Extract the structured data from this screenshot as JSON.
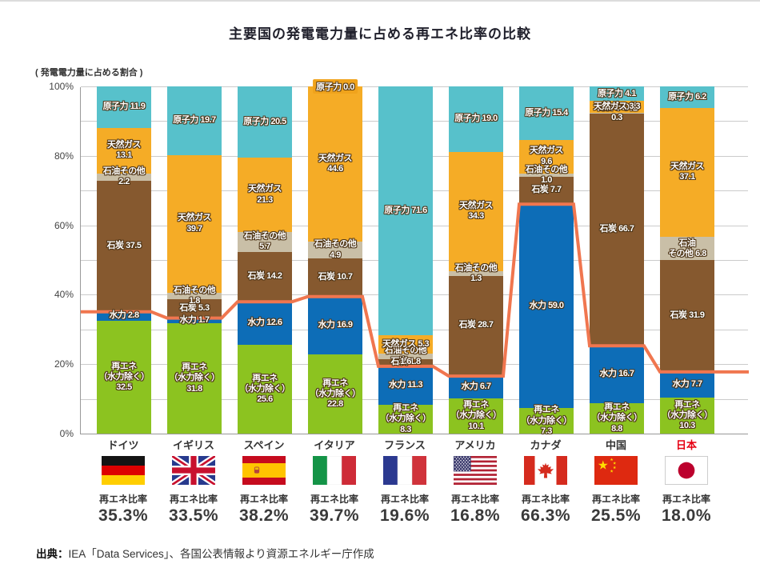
{
  "title": "主要国の発電電力量に占める再エネ比率の比較",
  "axis_note": "( 発電電力量に占める割合 )",
  "ratio_label": "再エネ比率",
  "source": {
    "prefix": "出典：",
    "text": "IEA「Data Services」、各国公表情報より資源エネルギー庁作成"
  },
  "chart_data": {
    "type": "bar",
    "stacked": true,
    "ylim": [
      0,
      100
    ],
    "grid": true,
    "yticks": [
      "0%",
      "20%",
      "40%",
      "60%",
      "80%",
      "100%"
    ],
    "line_series": {
      "name": "再エネ比率",
      "color": "#F0764F"
    },
    "zero_chip_color": "#F0A31C",
    "segments": [
      {
        "key": "renewable",
        "name": "再エネ（水力除く）",
        "color": "#8CC320"
      },
      {
        "key": "hydro",
        "name": "水力",
        "color": "#0D6DB7"
      },
      {
        "key": "coal",
        "name": "石炭",
        "color": "#86592F"
      },
      {
        "key": "oil",
        "name": "石油その他",
        "color": "#C9BFA7"
      },
      {
        "key": "gas",
        "name": "天然ガス",
        "color": "#F5AC26"
      },
      {
        "key": "nuclear",
        "name": "原子力",
        "color": "#57C1CB"
      }
    ],
    "countries": [
      {
        "id": "germany",
        "name": "ドイツ",
        "name_color": "#333333",
        "ratio": 35.3,
        "ratio_text": "35.3%",
        "flag": "germany",
        "values": {
          "renewable": 32.5,
          "hydro": 2.8,
          "coal": 37.5,
          "oil": 2.2,
          "gas": 13.1,
          "nuclear": 11.9
        },
        "labels": {
          "renewable": "再エネ\n（水力除く）\n32.5",
          "hydro": "水力 2.8",
          "coal": "石炭 37.5",
          "oil": "石油その他 2.2",
          "gas": "天然ガス\n13.1",
          "nuclear": "原子力 11.9"
        }
      },
      {
        "id": "uk",
        "name": "イギリス",
        "name_color": "#333333",
        "ratio": 33.5,
        "ratio_text": "33.5%",
        "flag": "uk",
        "values": {
          "renewable": 31.8,
          "hydro": 1.7,
          "coal": 5.3,
          "oil": 1.8,
          "gas": 39.7,
          "nuclear": 19.7
        },
        "labels": {
          "renewable": "再エネ\n（水力除く）\n31.8",
          "hydro": "水力 1.7",
          "coal": "石炭 5.3",
          "oil": "石油その他 1.8",
          "gas": "天然ガス\n39.7",
          "nuclear": "原子力 19.7"
        }
      },
      {
        "id": "spain",
        "name": "スペイン",
        "name_color": "#333333",
        "ratio": 38.2,
        "ratio_text": "38.2%",
        "flag": "spain",
        "values": {
          "renewable": 25.6,
          "hydro": 12.6,
          "coal": 14.2,
          "oil": 5.7,
          "gas": 21.3,
          "nuclear": 20.5
        },
        "labels": {
          "renewable": "再エネ\n（水力除く）\n25.6",
          "hydro": "水力 12.6",
          "coal": "石炭 14.2",
          "oil": "石油その他 5.7",
          "gas": "天然ガス\n21.3",
          "nuclear": "原子力 20.5"
        }
      },
      {
        "id": "italy",
        "name": "イタリア",
        "name_color": "#333333",
        "ratio": 39.7,
        "ratio_text": "39.7%",
        "flag": "italy",
        "values": {
          "renewable": 22.8,
          "hydro": 16.9,
          "coal": 10.7,
          "oil": 4.9,
          "gas": 44.6,
          "nuclear": 0.0
        },
        "labels": {
          "renewable": "再エネ\n（水力除く）\n22.8",
          "hydro": "水力 16.9",
          "coal": "石炭 10.7",
          "oil": "石油その他 4.9",
          "gas": "天然ガス\n44.6",
          "nuclear": "原子力 0.0"
        }
      },
      {
        "id": "france",
        "name": "フランス",
        "name_color": "#333333",
        "ratio": 19.6,
        "ratio_text": "19.6%",
        "flag": "france",
        "values": {
          "renewable": 8.3,
          "hydro": 11.3,
          "coal": 1.8,
          "oil": 1.6,
          "gas": 5.3,
          "nuclear": 71.6
        },
        "labels": {
          "renewable": "再エネ\n（水力除く）\n8.3",
          "hydro": "水力 11.3",
          "coal": "石炭 1.8",
          "oil": "石油その他 1.6",
          "gas": "天然ガス 5.3",
          "nuclear": "原子力 71.6"
        }
      },
      {
        "id": "usa",
        "name": "アメリカ",
        "name_color": "#333333",
        "ratio": 16.8,
        "ratio_text": "16.8%",
        "flag": "usa",
        "values": {
          "renewable": 10.1,
          "hydro": 6.7,
          "coal": 28.7,
          "oil": 1.3,
          "gas": 34.3,
          "nuclear": 19.0
        },
        "labels": {
          "renewable": "再エネ\n（水力除く）\n10.1",
          "hydro": "水力 6.7",
          "coal": "石炭 28.7",
          "oil": "石油その他 1.3",
          "gas": "天然ガス\n34.3",
          "nuclear": "原子力 19.0"
        }
      },
      {
        "id": "canada",
        "name": "カナダ",
        "name_color": "#333333",
        "ratio": 66.3,
        "ratio_text": "66.3%",
        "flag": "canada",
        "values": {
          "renewable": 7.3,
          "hydro": 59.0,
          "coal": 7.7,
          "oil": 1.0,
          "gas": 9.6,
          "nuclear": 15.4
        },
        "labels": {
          "renewable": "再エネ\n（水力除く）\n7.3",
          "hydro": "水力 59.0",
          "coal": "石炭 7.7",
          "oil": "石油その他 1.0",
          "gas": "天然ガス\n9.6",
          "nuclear": "原子力 15.4"
        }
      },
      {
        "id": "china",
        "name": "中国",
        "name_color": "#333333",
        "ratio": 25.5,
        "ratio_text": "25.5%",
        "flag": "china",
        "values": {
          "renewable": 8.8,
          "hydro": 16.7,
          "coal": 66.7,
          "oil": 0.3,
          "gas": 3.3,
          "nuclear": 4.1
        },
        "labels": {
          "renewable": "再エネ\n（水力除く）\n8.8",
          "hydro": "水力 16.7",
          "coal": "石炭 66.7",
          "oil": "石油その他 0.3",
          "gas": "天然ガス 3.3",
          "nuclear": "原子力 4.1"
        }
      },
      {
        "id": "japan",
        "name": "日本",
        "name_color": "#E60012",
        "ratio": 18.0,
        "ratio_text": "18.0%",
        "flag": "japan",
        "values": {
          "renewable": 10.3,
          "hydro": 7.7,
          "coal": 31.9,
          "oil": 6.8,
          "gas": 37.1,
          "nuclear": 6.2
        },
        "labels": {
          "renewable": "再エネ\n（水力除く）\n10.3",
          "hydro": "水力 7.7",
          "coal": "石炭 31.9",
          "oil": "石油\nその他 6.8",
          "gas": "天然ガス\n37.1",
          "nuclear": "原子力 6.2"
        }
      }
    ]
  }
}
